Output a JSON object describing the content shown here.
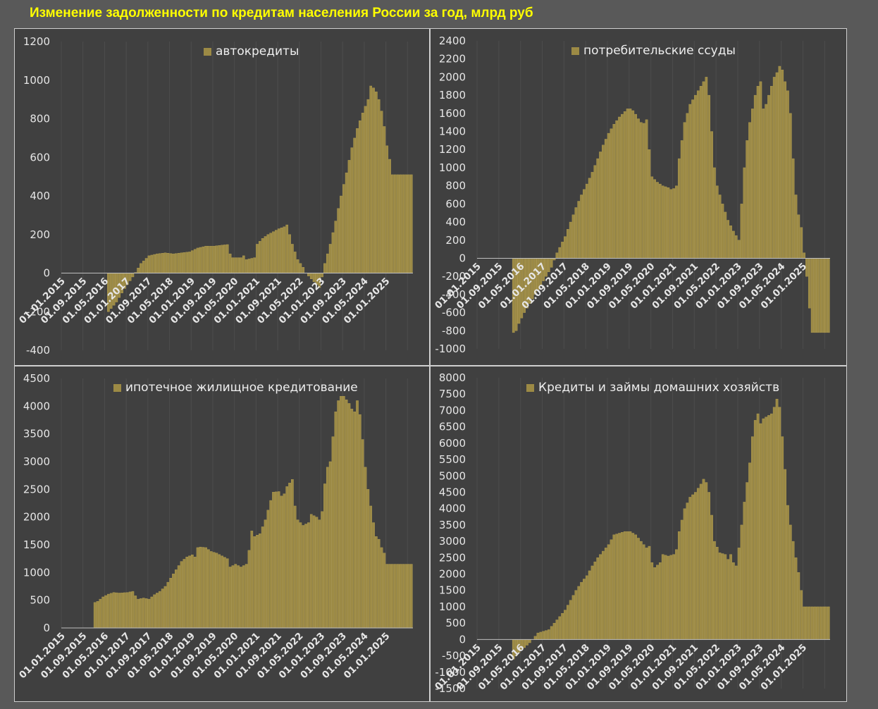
{
  "title": "Изменение задолженности по кредитам населения России за год, млрд руб",
  "colors": {
    "bar": "#9c8a45",
    "bar_edge": "#b8a355",
    "panel_bg": "#404040",
    "page_bg": "#595959",
    "title": "#ffff00",
    "grid": "#4d4d4d",
    "text": "#e6e6e6"
  },
  "x_tick_labels": [
    "01.01.2015",
    "01.09.2015",
    "01.05.2016",
    "01.01.2017",
    "01.09.2017",
    "01.05.2018",
    "01.01.2019",
    "01.09.2019",
    "01.05.2020",
    "01.01.2021",
    "01.09.2021",
    "01.05.2022",
    "01.01.2023",
    "01.09.2023",
    "01.05.2024",
    "01.01.2025"
  ],
  "chart_data": [
    {
      "id": "auto",
      "type": "bar",
      "series": [
        {
          "name": "автокредиты"
        }
      ],
      "ylim": [
        -400,
        1200
      ],
      "ystep": 200,
      "x_start": "2015-01",
      "n_months": 130,
      "knots": [
        [
          0,
          0
        ],
        [
          16,
          0
        ],
        [
          17,
          -200
        ],
        [
          20,
          -150
        ],
        [
          23,
          -80
        ],
        [
          26,
          -20
        ],
        [
          29,
          50
        ],
        [
          32,
          90
        ],
        [
          35,
          100
        ],
        [
          38,
          105
        ],
        [
          41,
          100
        ],
        [
          44,
          105
        ],
        [
          47,
          110
        ],
        [
          50,
          130
        ],
        [
          53,
          140
        ],
        [
          56,
          140
        ],
        [
          59,
          145
        ],
        [
          61,
          148
        ],
        [
          62,
          100
        ],
        [
          63,
          80
        ],
        [
          66,
          80
        ],
        [
          67,
          90
        ],
        [
          68,
          70
        ],
        [
          71,
          80
        ],
        [
          72,
          150
        ],
        [
          74,
          180
        ],
        [
          76,
          200
        ],
        [
          78,
          215
        ],
        [
          80,
          230
        ],
        [
          82,
          240
        ],
        [
          83,
          250
        ],
        [
          85,
          150
        ],
        [
          87,
          70
        ],
        [
          89,
          30
        ],
        [
          90,
          0
        ],
        [
          92,
          -30
        ],
        [
          94,
          -60
        ],
        [
          95,
          -75
        ],
        [
          96,
          -20
        ],
        [
          97,
          50
        ],
        [
          99,
          150
        ],
        [
          101,
          270
        ],
        [
          103,
          400
        ],
        [
          105,
          520
        ],
        [
          107,
          650
        ],
        [
          109,
          750
        ],
        [
          111,
          830
        ],
        [
          113,
          900
        ],
        [
          114,
          970
        ],
        [
          115,
          960
        ],
        [
          116,
          940
        ],
        [
          117,
          900
        ],
        [
          118,
          840
        ],
        [
          119,
          760
        ],
        [
          120,
          660
        ],
        [
          121,
          590
        ],
        [
          122,
          510
        ]
      ],
      "grid": true,
      "legend": "top-center"
    },
    {
      "id": "consumer",
      "type": "bar",
      "series": [
        {
          "name": "потребительские ссуды"
        }
      ],
      "ylim": [
        -1000,
        2400
      ],
      "ystep": 200,
      "x_start": "2015-01",
      "n_months": 130,
      "knots": [
        [
          0,
          0
        ],
        [
          12,
          0
        ],
        [
          13,
          -820
        ],
        [
          14,
          -800
        ],
        [
          15,
          -720
        ],
        [
          17,
          -600
        ],
        [
          19,
          -500
        ],
        [
          21,
          -400
        ],
        [
          23,
          -300
        ],
        [
          25,
          -200
        ],
        [
          27,
          -100
        ],
        [
          28,
          -20
        ],
        [
          29,
          60
        ],
        [
          30,
          120
        ],
        [
          32,
          240
        ],
        [
          34,
          400
        ],
        [
          36,
          560
        ],
        [
          38,
          700
        ],
        [
          40,
          820
        ],
        [
          42,
          950
        ],
        [
          44,
          1100
        ],
        [
          46,
          1250
        ],
        [
          48,
          1380
        ],
        [
          50,
          1480
        ],
        [
          52,
          1560
        ],
        [
          54,
          1620
        ],
        [
          55,
          1650
        ],
        [
          56,
          1650
        ],
        [
          57,
          1630
        ],
        [
          58,
          1590
        ],
        [
          59,
          1540
        ],
        [
          60,
          1500
        ],
        [
          61,
          1490
        ],
        [
          62,
          1530
        ],
        [
          63,
          1200
        ],
        [
          64,
          900
        ],
        [
          66,
          840
        ],
        [
          68,
          800
        ],
        [
          70,
          780
        ],
        [
          71,
          760
        ],
        [
          72,
          770
        ],
        [
          73,
          800
        ],
        [
          74,
          1100
        ],
        [
          76,
          1500
        ],
        [
          78,
          1700
        ],
        [
          80,
          1800
        ],
        [
          82,
          1900
        ],
        [
          84,
          2000
        ],
        [
          85,
          1800
        ],
        [
          86,
          1400
        ],
        [
          87,
          1000
        ],
        [
          88,
          800
        ],
        [
          90,
          600
        ],
        [
          92,
          420
        ],
        [
          94,
          300
        ],
        [
          96,
          200
        ],
        [
          97,
          600
        ],
        [
          98,
          1000
        ],
        [
          99,
          1300
        ],
        [
          100,
          1500
        ],
        [
          102,
          1800
        ],
        [
          103,
          1900
        ],
        [
          104,
          1950
        ],
        [
          105,
          1650
        ],
        [
          106,
          1700
        ],
        [
          107,
          1800
        ],
        [
          108,
          1900
        ],
        [
          109,
          2000
        ],
        [
          110,
          2050
        ],
        [
          111,
          2120
        ],
        [
          112,
          2080
        ],
        [
          113,
          1950
        ],
        [
          114,
          1850
        ],
        [
          115,
          1600
        ],
        [
          116,
          1100
        ],
        [
          117,
          700
        ],
        [
          118,
          480
        ],
        [
          119,
          340
        ],
        [
          120,
          60
        ],
        [
          121,
          -200
        ],
        [
          122,
          -550
        ],
        [
          123,
          -820
        ]
      ],
      "grid": true,
      "legend": "top-center"
    },
    {
      "id": "mortgage",
      "type": "bar",
      "series": [
        {
          "name": "ипотечное жилищное кредитование"
        }
      ],
      "ylim": [
        0,
        4500
      ],
      "ystep": 500,
      "x_start": "2015-01",
      "n_months": 130,
      "knots": [
        [
          0,
          0
        ],
        [
          11,
          0
        ],
        [
          12,
          460
        ],
        [
          13,
          480
        ],
        [
          15,
          560
        ],
        [
          17,
          610
        ],
        [
          19,
          640
        ],
        [
          21,
          630
        ],
        [
          24,
          640
        ],
        [
          26,
          660
        ],
        [
          27,
          580
        ],
        [
          28,
          520
        ],
        [
          30,
          540
        ],
        [
          32,
          520
        ],
        [
          34,
          600
        ],
        [
          36,
          660
        ],
        [
          38,
          750
        ],
        [
          40,
          900
        ],
        [
          42,
          1050
        ],
        [
          44,
          1200
        ],
        [
          46,
          1280
        ],
        [
          48,
          1320
        ],
        [
          49,
          1280
        ],
        [
          50,
          1450
        ],
        [
          51,
          1460
        ],
        [
          53,
          1450
        ],
        [
          55,
          1380
        ],
        [
          57,
          1350
        ],
        [
          59,
          1300
        ],
        [
          61,
          1250
        ],
        [
          62,
          1100
        ],
        [
          64,
          1150
        ],
        [
          66,
          1100
        ],
        [
          68,
          1150
        ],
        [
          69,
          1400
        ],
        [
          70,
          1750
        ],
        [
          71,
          1650
        ],
        [
          73,
          1700
        ],
        [
          75,
          1950
        ],
        [
          77,
          2300
        ],
        [
          78,
          2450
        ],
        [
          80,
          2460
        ],
        [
          81,
          2380
        ],
        [
          82,
          2420
        ],
        [
          83,
          2550
        ],
        [
          85,
          2680
        ],
        [
          86,
          2200
        ],
        [
          87,
          1950
        ],
        [
          89,
          1850
        ],
        [
          91,
          1900
        ],
        [
          92,
          2050
        ],
        [
          94,
          2000
        ],
        [
          95,
          1950
        ],
        [
          96,
          2100
        ],
        [
          97,
          2600
        ],
        [
          98,
          2900
        ],
        [
          99,
          3000
        ],
        [
          100,
          3450
        ],
        [
          101,
          3900
        ],
        [
          102,
          4100
        ],
        [
          103,
          4180
        ],
        [
          104,
          4180
        ],
        [
          106,
          4050
        ],
        [
          107,
          3950
        ],
        [
          108,
          3900
        ],
        [
          109,
          4100
        ],
        [
          110,
          3850
        ],
        [
          111,
          3400
        ],
        [
          112,
          2900
        ],
        [
          113,
          2500
        ],
        [
          114,
          2200
        ],
        [
          115,
          1900
        ],
        [
          116,
          1650
        ],
        [
          117,
          1600
        ],
        [
          118,
          1450
        ],
        [
          119,
          1350
        ],
        [
          120,
          1150
        ]
      ],
      "grid": true,
      "legend": "top-center"
    },
    {
      "id": "total",
      "type": "bar",
      "series": [
        {
          "name": "Кредиты и займы домашних хозяйств"
        }
      ],
      "ylim": [
        -1500,
        8000
      ],
      "ystep": 500,
      "x_start": "2015-01",
      "n_months": 130,
      "knots": [
        [
          0,
          0
        ],
        [
          12,
          0
        ],
        [
          13,
          -600
        ],
        [
          15,
          -400
        ],
        [
          17,
          -250
        ],
        [
          19,
          -100
        ],
        [
          20,
          0
        ],
        [
          21,
          100
        ],
        [
          22,
          200
        ],
        [
          24,
          250
        ],
        [
          26,
          300
        ],
        [
          28,
          500
        ],
        [
          30,
          700
        ],
        [
          32,
          900
        ],
        [
          34,
          1200
        ],
        [
          36,
          1500
        ],
        [
          38,
          1750
        ],
        [
          40,
          1950
        ],
        [
          42,
          2250
        ],
        [
          44,
          2500
        ],
        [
          46,
          2700
        ],
        [
          48,
          2900
        ],
        [
          50,
          3200
        ],
        [
          52,
          3250
        ],
        [
          54,
          3300
        ],
        [
          56,
          3300
        ],
        [
          58,
          3200
        ],
        [
          60,
          3000
        ],
        [
          62,
          2800
        ],
        [
          63,
          2850
        ],
        [
          64,
          2350
        ],
        [
          65,
          2200
        ],
        [
          67,
          2350
        ],
        [
          68,
          2600
        ],
        [
          70,
          2550
        ],
        [
          72,
          2600
        ],
        [
          73,
          2750
        ],
        [
          74,
          3300
        ],
        [
          76,
          4000
        ],
        [
          78,
          4350
        ],
        [
          80,
          4500
        ],
        [
          82,
          4750
        ],
        [
          83,
          4900
        ],
        [
          84,
          4800
        ],
        [
          85,
          4500
        ],
        [
          86,
          3800
        ],
        [
          87,
          3000
        ],
        [
          89,
          2650
        ],
        [
          91,
          2600
        ],
        [
          92,
          2450
        ],
        [
          93,
          2600
        ],
        [
          94,
          2350
        ],
        [
          95,
          2250
        ],
        [
          96,
          2800
        ],
        [
          97,
          3500
        ],
        [
          98,
          4200
        ],
        [
          99,
          4800
        ],
        [
          100,
          5400
        ],
        [
          101,
          6200
        ],
        [
          102,
          6700
        ],
        [
          103,
          6900
        ],
        [
          104,
          6600
        ],
        [
          105,
          6750
        ],
        [
          106,
          6800
        ],
        [
          108,
          6900
        ],
        [
          109,
          7100
        ],
        [
          110,
          7350
        ],
        [
          111,
          7100
        ],
        [
          112,
          6200
        ],
        [
          113,
          5200
        ],
        [
          114,
          4100
        ],
        [
          115,
          3500
        ],
        [
          116,
          3000
        ],
        [
          117,
          2500
        ],
        [
          118,
          2050
        ],
        [
          119,
          1500
        ],
        [
          120,
          1000
        ]
      ],
      "grid": true,
      "legend": "top-center"
    }
  ]
}
